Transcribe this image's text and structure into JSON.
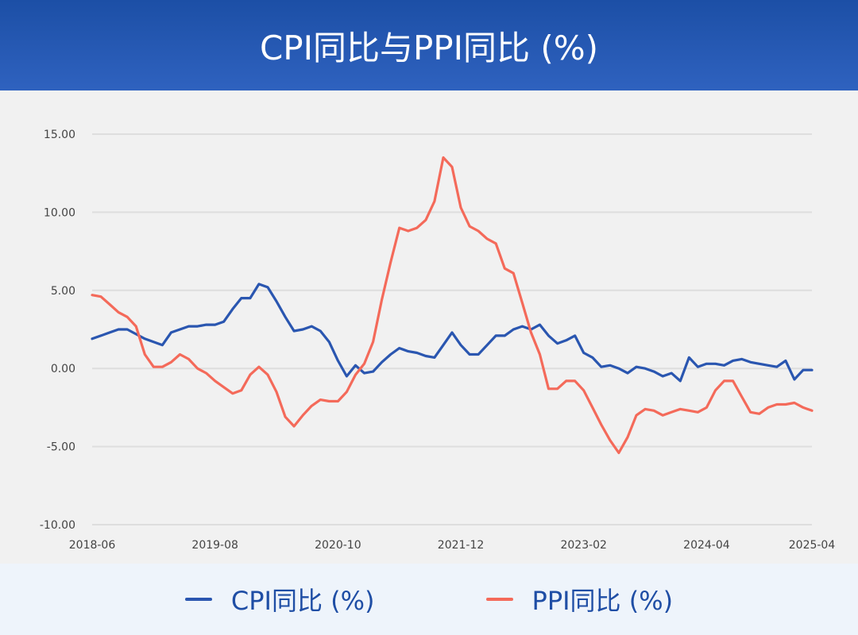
{
  "colors": {
    "header_bg": "#2457b3",
    "cpi": "#2a56b0",
    "ppi": "#f46a5a",
    "grid": "#dedede",
    "tick_text": "#444444",
    "legend_text": "#1f4ea5"
  },
  "chart_data": {
    "type": "line",
    "title": "CPI同比与PPI同比 (%)",
    "xlabel": "",
    "ylabel": "",
    "ylim": [
      -10,
      15
    ],
    "yticks": [
      "15.00",
      "10.00",
      "5.00",
      "0.00",
      "-5.00",
      "-10.00"
    ],
    "ytick_values": [
      15,
      10,
      5,
      0,
      -5,
      -10
    ],
    "xtick_labels": [
      "2018-06",
      "2019-08",
      "2020-10",
      "2021-12",
      "2023-02",
      "2024-04",
      "2025-04"
    ],
    "grid": true,
    "legend_position": "bottom",
    "x_start": "2018-06",
    "x_end": "2025-04",
    "series": [
      {
        "name": "CPI同比 (%)",
        "color": "#2a56b0",
        "values": [
          1.9,
          2.1,
          2.3,
          2.5,
          2.5,
          2.2,
          1.9,
          1.7,
          1.5,
          2.3,
          2.5,
          2.7,
          2.7,
          2.8,
          2.8,
          3.0,
          3.8,
          4.5,
          4.5,
          5.4,
          5.2,
          4.3,
          3.3,
          2.4,
          2.5,
          2.7,
          2.4,
          1.7,
          0.5,
          -0.5,
          0.2,
          -0.3,
          -0.2,
          0.4,
          0.9,
          1.3,
          1.1,
          1.0,
          0.8,
          0.7,
          1.5,
          2.3,
          1.5,
          0.9,
          0.9,
          1.5,
          2.1,
          2.1,
          2.5,
          2.7,
          2.5,
          2.8,
          2.1,
          1.6,
          1.8,
          2.1,
          1.0,
          0.7,
          0.1,
          0.2,
          0.0,
          -0.3,
          0.1,
          0.0,
          -0.2,
          -0.5,
          -0.3,
          -0.8,
          0.7,
          0.1,
          0.3,
          0.3,
          0.2,
          0.5,
          0.6,
          0.4,
          0.3,
          0.2,
          0.1,
          0.5,
          -0.7,
          -0.1,
          -0.1
        ]
      },
      {
        "name": "PPI同比 (%)",
        "color": "#f46a5a",
        "values": [
          4.7,
          4.6,
          4.1,
          3.6,
          3.3,
          2.7,
          0.9,
          0.1,
          0.1,
          0.4,
          0.9,
          0.6,
          0.0,
          -0.3,
          -0.8,
          -1.2,
          -1.6,
          -1.4,
          -0.4,
          0.1,
          -0.4,
          -1.5,
          -3.1,
          -3.7,
          -3.0,
          -2.4,
          -2.0,
          -2.1,
          -2.1,
          -1.5,
          -0.4,
          0.3,
          1.7,
          4.4,
          6.8,
          9.0,
          8.8,
          9.0,
          9.5,
          10.7,
          13.5,
          12.9,
          10.3,
          9.1,
          8.8,
          8.3,
          8.0,
          6.4,
          6.1,
          4.2,
          2.3,
          0.9,
          -1.3,
          -1.3,
          -0.8,
          -0.8,
          -1.4,
          -2.5,
          -3.6,
          -4.6,
          -5.4,
          -4.4,
          -3.0,
          -2.6,
          -2.7,
          -3.0,
          -2.8,
          -2.6,
          -2.7,
          -2.8,
          -2.5,
          -1.4,
          -0.8,
          -0.8,
          -1.8,
          -2.8,
          -2.9,
          -2.5,
          -2.3,
          -2.3,
          -2.2,
          -2.5,
          -2.7
        ]
      }
    ]
  }
}
